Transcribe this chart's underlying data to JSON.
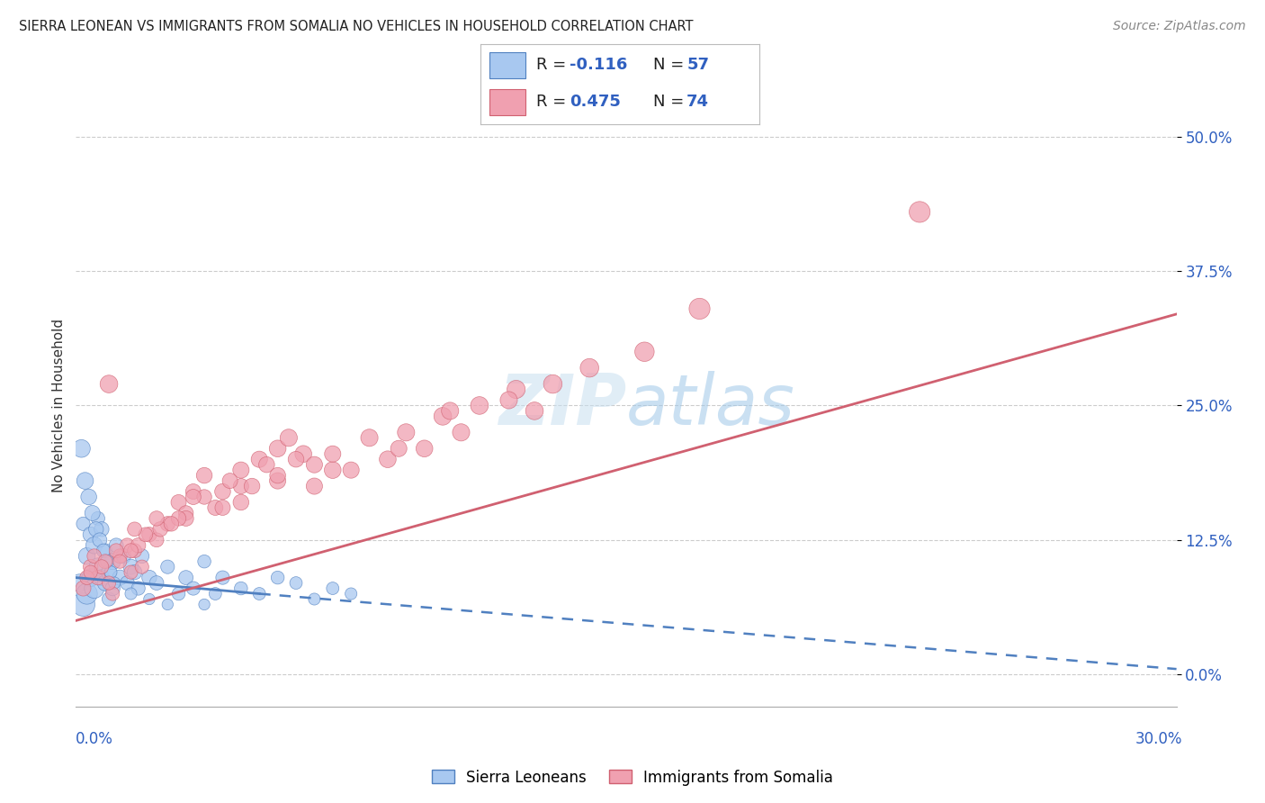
{
  "title": "SIERRA LEONEAN VS IMMIGRANTS FROM SOMALIA NO VEHICLES IN HOUSEHOLD CORRELATION CHART",
  "source": "Source: ZipAtlas.com",
  "ylabel": "No Vehicles in Household",
  "ytick_vals": [
    0.0,
    12.5,
    25.0,
    37.5,
    50.0
  ],
  "xlim": [
    0.0,
    30.0
  ],
  "ylim": [
    -3.0,
    53.0
  ],
  "legend_r1": "-0.116",
  "legend_n1": "57",
  "legend_r2": "0.475",
  "legend_n2": "74",
  "legend_label1": "Sierra Leoneans",
  "legend_label2": "Immigrants from Somalia",
  "color_blue": "#a8c8f0",
  "color_pink": "#f0a0b0",
  "color_blue_dark": "#5080c0",
  "color_pink_dark": "#d06070",
  "color_r_val": "#3060c0",
  "color_n_val": "#3060c0",
  "trend_blue_x0": 0.0,
  "trend_blue_y0": 9.0,
  "trend_blue_x1": 5.0,
  "trend_blue_y1": 7.5,
  "trend_blue_x2": 30.0,
  "trend_blue_y2": 0.5,
  "trend_pink_x0": 0.0,
  "trend_pink_y0": 5.0,
  "trend_pink_x1": 30.0,
  "trend_pink_y1": 33.5,
  "sierra_x": [
    0.1,
    0.2,
    0.2,
    0.3,
    0.3,
    0.4,
    0.4,
    0.5,
    0.5,
    0.6,
    0.6,
    0.7,
    0.7,
    0.8,
    0.8,
    0.9,
    0.9,
    1.0,
    1.0,
    1.1,
    1.2,
    1.3,
    1.4,
    1.5,
    1.6,
    1.7,
    1.8,
    2.0,
    2.2,
    2.5,
    2.8,
    3.0,
    3.2,
    3.5,
    3.8,
    4.0,
    4.5,
    5.0,
    5.5,
    6.0,
    6.5,
    7.0,
    7.5,
    0.15,
    0.25,
    0.35,
    0.45,
    0.55,
    0.65,
    0.75,
    0.85,
    0.95,
    1.05,
    1.5,
    2.0,
    2.5,
    3.5
  ],
  "sierra_y": [
    8.5,
    6.5,
    14.0,
    7.5,
    11.0,
    9.0,
    13.0,
    8.0,
    12.0,
    10.0,
    14.5,
    9.0,
    13.5,
    8.5,
    11.5,
    9.5,
    7.0,
    10.5,
    8.0,
    12.0,
    9.0,
    11.0,
    8.5,
    10.0,
    9.5,
    8.0,
    11.0,
    9.0,
    8.5,
    10.0,
    7.5,
    9.0,
    8.0,
    10.5,
    7.5,
    9.0,
    8.0,
    7.5,
    9.0,
    8.5,
    7.0,
    8.0,
    7.5,
    21.0,
    18.0,
    16.5,
    15.0,
    13.5,
    12.5,
    11.5,
    10.5,
    9.5,
    8.5,
    7.5,
    7.0,
    6.5,
    6.5
  ],
  "sierra_sizes": [
    200,
    350,
    120,
    280,
    180,
    200,
    150,
    250,
    180,
    200,
    120,
    160,
    140,
    160,
    130,
    150,
    120,
    170,
    140,
    130,
    150,
    140,
    130,
    150,
    140,
    120,
    130,
    140,
    130,
    120,
    110,
    130,
    120,
    110,
    100,
    120,
    110,
    100,
    110,
    100,
    90,
    100,
    90,
    200,
    180,
    160,
    150,
    140,
    130,
    120,
    110,
    100,
    90,
    90,
    80,
    80,
    80
  ],
  "somalia_x": [
    0.2,
    0.4,
    0.5,
    0.6,
    0.8,
    0.9,
    1.0,
    1.2,
    1.4,
    1.5,
    1.6,
    1.8,
    2.0,
    2.2,
    2.5,
    2.8,
    3.0,
    3.2,
    3.5,
    4.0,
    4.5,
    5.0,
    5.5,
    5.8,
    6.2,
    7.0,
    8.0,
    9.0,
    10.0,
    11.0,
    12.0,
    13.0,
    14.0,
    15.5,
    17.0,
    23.0,
    0.3,
    0.7,
    1.1,
    1.7,
    2.3,
    3.0,
    3.8,
    4.5,
    5.5,
    6.5,
    7.5,
    8.5,
    9.5,
    10.5,
    12.5,
    4.5,
    6.0,
    3.5,
    2.8,
    1.9,
    0.9,
    7.0,
    5.2,
    8.8,
    10.2,
    11.8,
    4.2,
    3.2,
    2.2,
    1.6,
    4.8,
    6.5,
    5.5,
    4.0,
    2.6,
    1.5,
    1.2,
    0.4
  ],
  "somalia_y": [
    8.0,
    10.0,
    11.0,
    9.0,
    10.5,
    27.0,
    7.5,
    11.0,
    12.0,
    9.5,
    11.5,
    10.0,
    13.0,
    12.5,
    14.0,
    16.0,
    15.0,
    17.0,
    18.5,
    17.0,
    19.0,
    20.0,
    21.0,
    22.0,
    20.5,
    19.0,
    22.0,
    22.5,
    24.0,
    25.0,
    26.5,
    27.0,
    28.5,
    30.0,
    34.0,
    43.0,
    9.0,
    10.0,
    11.5,
    12.0,
    13.5,
    14.5,
    15.5,
    16.0,
    18.0,
    17.5,
    19.0,
    20.0,
    21.0,
    22.5,
    24.5,
    17.5,
    20.0,
    16.5,
    14.5,
    13.0,
    8.5,
    20.5,
    19.5,
    21.0,
    24.5,
    25.5,
    18.0,
    16.5,
    14.5,
    13.5,
    17.5,
    19.5,
    18.5,
    15.5,
    14.0,
    11.5,
    10.5,
    9.5
  ],
  "somalia_sizes": [
    150,
    140,
    130,
    140,
    130,
    200,
    120,
    130,
    130,
    120,
    130,
    120,
    140,
    130,
    140,
    150,
    140,
    150,
    160,
    160,
    170,
    170,
    180,
    190,
    180,
    180,
    190,
    190,
    200,
    200,
    210,
    220,
    220,
    240,
    280,
    280,
    130,
    130,
    130,
    140,
    140,
    150,
    150,
    160,
    170,
    170,
    170,
    180,
    180,
    190,
    200,
    150,
    160,
    140,
    140,
    130,
    120,
    170,
    160,
    170,
    190,
    190,
    150,
    150,
    140,
    130,
    160,
    170,
    160,
    150,
    140,
    130,
    120,
    120
  ]
}
